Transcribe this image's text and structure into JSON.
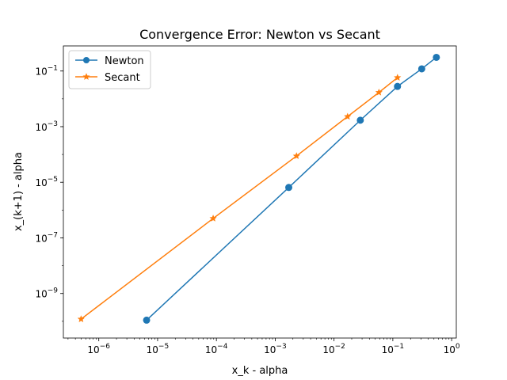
{
  "chart_data": {
    "type": "line",
    "title": "Convergence Error: Newton vs Secant",
    "xlabel": "x_k - alpha",
    "ylabel": "x_(k+1) - alpha",
    "xscale": "log",
    "yscale": "log",
    "xlim": [
      2.5e-07,
      1.2
    ],
    "ylim": [
      2.5e-11,
      0.8
    ],
    "x_ticks": [
      {
        "base": "10",
        "exp": "−6",
        "value": 1e-06
      },
      {
        "base": "10",
        "exp": "−5",
        "value": 1e-05
      },
      {
        "base": "10",
        "exp": "−4",
        "value": 0.0001
      },
      {
        "base": "10",
        "exp": "−3",
        "value": 0.001
      },
      {
        "base": "10",
        "exp": "−2",
        "value": 0.01
      },
      {
        "base": "10",
        "exp": "−1",
        "value": 0.1
      },
      {
        "base": "10",
        "exp": "0",
        "value": 1
      }
    ],
    "y_ticks": [
      {
        "base": "10",
        "exp": "−9",
        "value": 1e-09
      },
      {
        "base": "10",
        "exp": "−7",
        "value": 1e-07
      },
      {
        "base": "10",
        "exp": "−5",
        "value": 1e-05
      },
      {
        "base": "10",
        "exp": "−3",
        "value": 0.001
      },
      {
        "base": "10",
        "exp": "−1",
        "value": 0.1
      }
    ],
    "grid": false,
    "legend_position": "top-left",
    "series": [
      {
        "name": "Newton",
        "color": "#1f77b4",
        "marker": "circle",
        "x": [
          0.55,
          0.31,
          0.12,
          0.028,
          0.0017,
          6.5e-06
        ],
        "y": [
          0.31,
          0.12,
          0.028,
          0.0017,
          6.5e-06,
          1.1e-10
        ]
      },
      {
        "name": "Secant",
        "color": "#ff7f0e",
        "marker": "star",
        "x": [
          0.12,
          0.058,
          0.017,
          0.0023,
          8.8e-05,
          5e-07
        ],
        "y": [
          0.058,
          0.017,
          0.0023,
          8.8e-05,
          5e-07,
          1.2e-10
        ]
      }
    ]
  }
}
